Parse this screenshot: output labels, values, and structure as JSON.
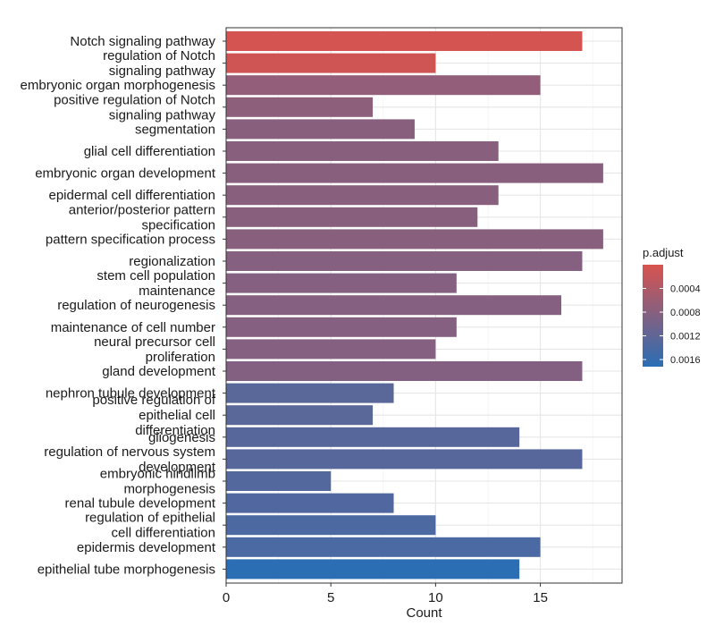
{
  "chart_data": {
    "type": "bar",
    "orientation": "horizontal",
    "xlabel": "Count",
    "ylabel": "",
    "xlim": [
      0,
      18.9
    ],
    "x_ticks": [
      0,
      5,
      10,
      15
    ],
    "grid": true,
    "legend_position": "right",
    "categories": [
      [
        "Notch signaling pathway"
      ],
      [
        "regulation of Notch",
        "signaling pathway"
      ],
      [
        "embryonic organ morphogenesis"
      ],
      [
        "positive regulation of Notch",
        "signaling pathway"
      ],
      [
        "segmentation"
      ],
      [
        "glial cell differentiation"
      ],
      [
        "embryonic organ development"
      ],
      [
        "epidermal cell differentiation"
      ],
      [
        "anterior/posterior pattern",
        "specification"
      ],
      [
        "pattern specification process"
      ],
      [
        "regionalization"
      ],
      [
        "stem cell population",
        "maintenance"
      ],
      [
        "regulation of neurogenesis"
      ],
      [
        "maintenance of cell number"
      ],
      [
        "neural precursor cell",
        "proliferation"
      ],
      [
        "gland development"
      ],
      [
        "nephron tubule development"
      ],
      [
        "positive regulation of",
        "epithelial cell",
        "differentiation"
      ],
      [
        "gliogenesis"
      ],
      [
        "regulation of nervous system",
        "development"
      ],
      [
        "embryonic hindlimb",
        "morphogenesis"
      ],
      [
        "renal tubule development"
      ],
      [
        "regulation of epithelial",
        "cell differentiation"
      ],
      [
        "epidermis development"
      ],
      [
        "epithelial tube morphogenesis"
      ]
    ],
    "values": [
      17,
      10,
      15,
      7,
      9,
      13,
      18,
      13,
      12,
      18,
      17,
      11,
      16,
      11,
      10,
      17,
      8,
      7,
      14,
      17,
      5,
      8,
      10,
      15,
      14
    ],
    "p_adjust": [
      5e-05,
      0.0001,
      0.0007,
      0.00075,
      0.0008,
      0.0008,
      0.0008,
      0.0008,
      0.0008,
      0.0008,
      0.00082,
      0.00082,
      0.00082,
      0.00082,
      0.00082,
      0.00085,
      0.00125,
      0.00125,
      0.00128,
      0.00128,
      0.00132,
      0.00135,
      0.00138,
      0.0014,
      0.0017
    ],
    "legend": {
      "title": "p.adjust",
      "ticks": [
        0.0004,
        0.0008,
        0.0012,
        0.0016
      ],
      "tick_labels": [
        "0.0004",
        "0.0008",
        "0.0012",
        "0.0016"
      ],
      "range": [
        0.0,
        0.00172
      ],
      "color_low": "#d9534f",
      "color_high": "#2a6eb5"
    }
  }
}
